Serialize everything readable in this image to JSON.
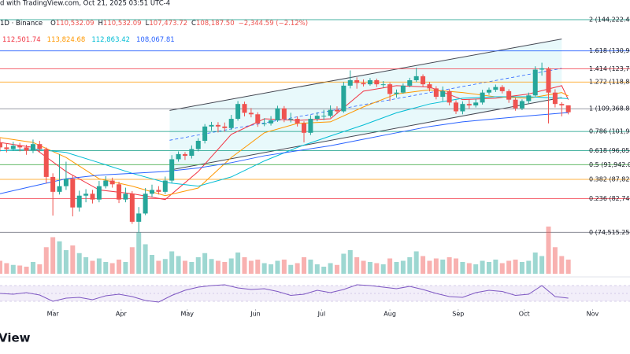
{
  "chart_data": {
    "type": "candlestick",
    "published": "d with TradingView.com, Oct 21, 2025 03:51 UTC-4",
    "symbol": "1D · Binance",
    "ohlc": [
      {
        "key": "O",
        "value": "110,532.09"
      },
      {
        "key": "H",
        "value": "110,532.09"
      },
      {
        "key": "L",
        "value": "107,473.72"
      },
      {
        "key": "C",
        "value": "108,187.50"
      }
    ],
    "change": "−2,344.59 (−2.12%)",
    "logo": "View",
    "log_scale": true,
    "ylim": [
      65200,
      153300
    ],
    "xlim": [
      36,
      322
    ],
    "xticks": [
      {
        "value": 60,
        "label": "Mar"
      },
      {
        "value": 91,
        "label": "Apr"
      },
      {
        "value": 121,
        "label": "May"
      },
      {
        "value": 152,
        "label": "Jun"
      },
      {
        "value": 182,
        "label": "Jul"
      },
      {
        "value": 213,
        "label": "Aug"
      },
      {
        "value": 244,
        "label": "Sep"
      },
      {
        "value": 274,
        "label": "Oct"
      },
      {
        "value": 305,
        "label": "Nov"
      }
    ],
    "up_color": "#26a69a",
    "down_color": "#ef5350",
    "x": [
      36,
      39,
      42,
      45,
      48,
      51,
      54,
      57,
      60,
      63,
      66,
      69,
      72,
      75,
      78,
      81,
      84,
      87,
      90,
      93,
      96,
      99,
      102,
      105,
      108,
      111,
      114,
      117,
      120,
      123,
      126,
      129,
      132,
      135,
      138,
      141,
      144,
      147,
      150,
      153,
      156,
      159,
      162,
      165,
      168,
      171,
      174,
      177,
      180,
      183,
      186,
      189,
      192,
      195,
      198,
      201,
      204,
      207,
      210,
      213,
      216,
      219,
      222,
      225,
      228,
      231,
      234,
      237,
      240,
      243,
      246,
      249,
      252,
      255,
      258,
      261,
      264,
      267,
      270,
      273,
      276,
      279,
      282,
      285,
      288,
      291,
      294
    ],
    "candles": [
      [
        98500,
        99800,
        95800,
        97000
      ],
      [
        97000,
        98200,
        95500,
        96500
      ],
      [
        96500,
        98700,
        95900,
        97500
      ],
      [
        97500,
        98400,
        95800,
        97000
      ],
      [
        97000,
        97800,
        94800,
        96000
      ],
      [
        96000,
        99400,
        95300,
        98000
      ],
      [
        98000,
        99000,
        95400,
        96500
      ],
      [
        96500,
        97000,
        86800,
        88500
      ],
      [
        88500,
        89500,
        78500,
        84500
      ],
      [
        84500,
        95000,
        83800,
        86000
      ],
      [
        86000,
        92800,
        85000,
        88000
      ],
      [
        88000,
        89000,
        78300,
        80500
      ],
      [
        80500,
        84800,
        79500,
        83500
      ],
      [
        83500,
        85200,
        81800,
        84000
      ],
      [
        84000,
        85000,
        81500,
        82500
      ],
      [
        82500,
        87400,
        81800,
        86000
      ],
      [
        86000,
        88700,
        85400,
        87500
      ],
      [
        87500,
        88300,
        85600,
        86500
      ],
      [
        86500,
        87200,
        81600,
        82500
      ],
      [
        82500,
        85600,
        81800,
        84000
      ],
      [
        84000,
        84700,
        76500,
        77000
      ],
      [
        77000,
        80600,
        74500,
        79000
      ],
      [
        79000,
        85500,
        78600,
        84000
      ],
      [
        84000,
        86400,
        83200,
        85000
      ],
      [
        85000,
        86000,
        83800,
        84500
      ],
      [
        84500,
        88600,
        83900,
        87500
      ],
      [
        87500,
        94700,
        86900,
        93500
      ],
      [
        93500,
        95800,
        92800,
        95000
      ],
      [
        95000,
        95600,
        93300,
        94500
      ],
      [
        94500,
        97600,
        93700,
        96500
      ],
      [
        96500,
        99800,
        95800,
        99000
      ],
      [
        99000,
        104300,
        98200,
        103500
      ],
      [
        103500,
        105000,
        102200,
        104000
      ],
      [
        104000,
        104900,
        101600,
        103500
      ],
      [
        103500,
        104800,
        101800,
        103000
      ],
      [
        103000,
        107300,
        102400,
        106000
      ],
      [
        106000,
        112000,
        105400,
        111000
      ],
      [
        111000,
        111800,
        106800,
        108000
      ],
      [
        108000,
        109600,
        106500,
        107500
      ],
      [
        107500,
        108200,
        103400,
        104500
      ],
      [
        104500,
        106200,
        103600,
        104500
      ],
      [
        104500,
        106900,
        103800,
        105500
      ],
      [
        105500,
        110400,
        105000,
        109500
      ],
      [
        109500,
        110300,
        104900,
        106000
      ],
      [
        106000,
        108000,
        104800,
        106000
      ],
      [
        106000,
        106800,
        103500,
        104500
      ],
      [
        104500,
        105200,
        98500,
        101500
      ],
      [
        101500,
        107200,
        100800,
        106000
      ],
      [
        106000,
        108200,
        105200,
        107000
      ],
      [
        107000,
        109000,
        105600,
        107000
      ],
      [
        107000,
        110500,
        106400,
        109000
      ],
      [
        109000,
        110200,
        107600,
        108500
      ],
      [
        108500,
        118800,
        108000,
        117500
      ],
      [
        117500,
        123200,
        116500,
        119500
      ],
      [
        119500,
        120600,
        116400,
        118500
      ],
      [
        118500,
        119800,
        117200,
        118000
      ],
      [
        118000,
        120300,
        117500,
        119500
      ],
      [
        119500,
        120100,
        117000,
        118000
      ],
      [
        118000,
        119200,
        116800,
        118000
      ],
      [
        118000,
        118600,
        112000,
        114500
      ],
      [
        114500,
        116100,
        113200,
        115000
      ],
      [
        115000,
        118300,
        114600,
        117500
      ],
      [
        117500,
        120400,
        116900,
        119500
      ],
      [
        119500,
        124200,
        118800,
        121000
      ],
      [
        121000,
        121700,
        117200,
        118000
      ],
      [
        118000,
        118800,
        115400,
        116500
      ],
      [
        116500,
        117300,
        112600,
        113500
      ],
      [
        113500,
        117200,
        112000,
        115500
      ],
      [
        115500,
        116200,
        110500,
        111500
      ],
      [
        111500,
        112300,
        107600,
        108500
      ],
      [
        108500,
        111900,
        107500,
        111000
      ],
      [
        111000,
        112600,
        109400,
        110500
      ],
      [
        110500,
        112800,
        109800,
        111500
      ],
      [
        111500,
        116000,
        110800,
        115000
      ],
      [
        115000,
        116800,
        114200,
        116000
      ],
      [
        116000,
        117900,
        115200,
        117000
      ],
      [
        117000,
        117700,
        114700,
        115500
      ],
      [
        115500,
        116200,
        111400,
        112500
      ],
      [
        112500,
        113200,
        108700,
        109500
      ],
      [
        109500,
        112600,
        108900,
        112000
      ],
      [
        112000,
        115000,
        111100,
        114000
      ],
      [
        114000,
        124800,
        113600,
        123500
      ],
      [
        123500,
        126200,
        121200,
        124000
      ],
      [
        124000,
        124500,
        104500,
        115000
      ],
      [
        115000,
        116200,
        109800,
        111000
      ],
      [
        111000,
        111600,
        106800,
        110532.09
      ],
      [
        110532.09,
        110532.09,
        107473.72,
        108187.5
      ]
    ],
    "volume": [
      22,
      18,
      15,
      14,
      12,
      20,
      16,
      45,
      62,
      55,
      40,
      48,
      35,
      28,
      22,
      26,
      20,
      18,
      24,
      20,
      45,
      70,
      50,
      32,
      22,
      25,
      38,
      30,
      22,
      20,
      28,
      35,
      25,
      22,
      20,
      26,
      36,
      28,
      22,
      24,
      18,
      16,
      22,
      24,
      15,
      18,
      28,
      24,
      16,
      12,
      18,
      15,
      34,
      40,
      28,
      22,
      20,
      18,
      16,
      26,
      20,
      22,
      28,
      38,
      30,
      22,
      26,
      24,
      28,
      26,
      20,
      18,
      16,
      22,
      20,
      24,
      18,
      22,
      24,
      20,
      22,
      36,
      30,
      80,
      45,
      30,
      24
    ],
    "ma_x": [
      36,
      51,
      66,
      81,
      96,
      111,
      126,
      141,
      156,
      171,
      186,
      201,
      216,
      231,
      246,
      261,
      276,
      291,
      294
    ],
    "moving_averages": [
      {
        "color": "#f23645",
        "label": "112,501.74",
        "values": [
          98500,
          97000,
          90000,
          85000,
          84000,
          82500,
          90000,
          101000,
          106000,
          105500,
          106000,
          115500,
          117500,
          117000,
          112500,
          113000,
          114500,
          117500,
          112501.74
        ]
      },
      {
        "color": "#ff9800",
        "label": "113,824.68",
        "values": [
          100000,
          98500,
          94000,
          88000,
          86000,
          83500,
          85500,
          94000,
          101500,
          104500,
          105000,
          110000,
          114500,
          116000,
          115000,
          113500,
          113000,
          115000,
          113824.68
        ]
      },
      {
        "color": "#00bcd4",
        "label": "112,863.42",
        "values": [
          96000,
          96500,
          95500,
          92500,
          89500,
          87000,
          86000,
          88500,
          93000,
          97000,
          100500,
          104000,
          108000,
          111000,
          113000,
          113500,
          113500,
          113000,
          112863.42
        ]
      },
      {
        "color": "#2962ff",
        "label": "108,067.81",
        "values": [
          84000,
          86000,
          88000,
          89000,
          89500,
          90000,
          91000,
          92500,
          94500,
          96000,
          97500,
          99500,
          101500,
          103500,
          105000,
          106000,
          107000,
          107900,
          108067.81
        ]
      }
    ],
    "fib_levels": [
      {
        "label": "2 (144,222.44)",
        "price": 144222.44,
        "color": "#089981"
      },
      {
        "label": "1.618 (130,90",
        "price": 130900,
        "color": "#2962ff"
      },
      {
        "label": "1.414 (123,79",
        "price": 123790,
        "color": "#f23645"
      },
      {
        "label": "1.272 (118,84",
        "price": 118840,
        "color": "#ff9800"
      },
      {
        "label": "1 (109,368.85",
        "price": 109368.85,
        "color": "#787b86"
      },
      {
        "label": "0.786 (101,91",
        "price": 101910,
        "color": "#089981"
      },
      {
        "label": "0.618 (96,054",
        "price": 96054,
        "color": "#089981"
      },
      {
        "label": "0.5 (91,942.0",
        "price": 91942,
        "color": "#4caf50"
      },
      {
        "label": "0.382 (87,829",
        "price": 87829,
        "color": "#ff9800"
      },
      {
        "label": "0.236 (82,740",
        "price": 82740,
        "color": "#f23645"
      },
      {
        "label": "0 (74,515.25)",
        "price": 74515.25,
        "color": "#787b86"
      }
    ],
    "channel": {
      "x": [
        113,
        291
      ],
      "upper": [
        108800,
        135800
      ],
      "lower": [
        90400,
        113200
      ]
    },
    "rsi": {
      "color": "#7e57c2",
      "ylim": [
        0,
        100
      ],
      "bands": [
        30,
        70
      ],
      "midline": 50,
      "x": [
        36,
        42,
        48,
        54,
        60,
        66,
        72,
        78,
        84,
        90,
        96,
        102,
        108,
        114,
        120,
        126,
        132,
        138,
        144,
        150,
        156,
        162,
        168,
        174,
        180,
        186,
        192,
        198,
        204,
        210,
        216,
        222,
        228,
        234,
        240,
        246,
        252,
        258,
        264,
        270,
        276,
        282,
        288,
        294
      ],
      "values": [
        50,
        48,
        52,
        46,
        30,
        38,
        40,
        34,
        44,
        48,
        42,
        32,
        28,
        45,
        58,
        66,
        70,
        72,
        64,
        60,
        62,
        55,
        45,
        48,
        58,
        52,
        60,
        72,
        70,
        66,
        62,
        68,
        60,
        50,
        42,
        40,
        52,
        58,
        55,
        45,
        48,
        70,
        42,
        38
      ]
    }
  }
}
